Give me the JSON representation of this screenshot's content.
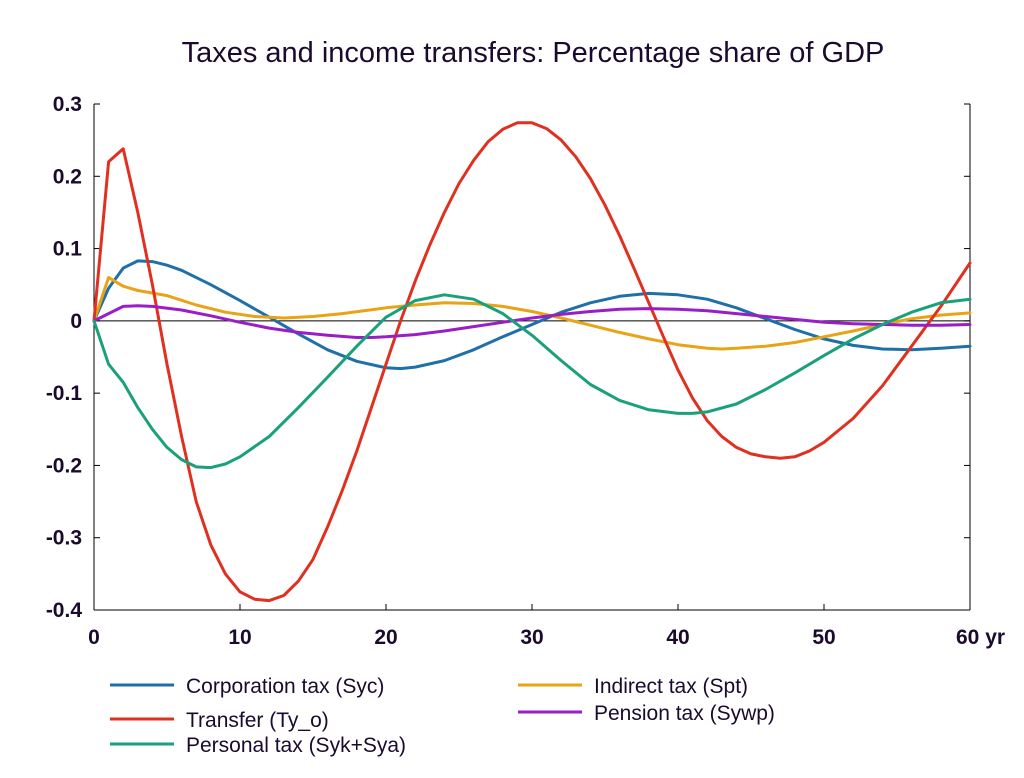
{
  "chart_data": {
    "type": "line",
    "title": "Taxes and income transfers: Percentage share of GDP",
    "xlabel": "",
    "ylabel": "",
    "xlim": [
      0,
      60
    ],
    "ylim": [
      -0.4,
      0.3
    ],
    "x_ticks": [
      0,
      10,
      20,
      30,
      40,
      50,
      60
    ],
    "x_tick_labels": [
      "0",
      "10",
      "20",
      "30",
      "40",
      "50",
      "60 yr"
    ],
    "y_ticks": [
      0.3,
      0.2,
      0.1,
      0,
      -0.1,
      -0.2,
      -0.3,
      -0.4
    ],
    "y_tick_labels": [
      "0.3",
      "0.2",
      "0.1",
      "0",
      "-0.1",
      "-0.2",
      "-0.3",
      "-0.4"
    ],
    "grid": false,
    "legend_position": "bottom",
    "series": [
      {
        "name": "Corporation tax (Syc)",
        "color": "#1f6fa8",
        "x": [
          0,
          1,
          2,
          3,
          4,
          5,
          6,
          8,
          10,
          12,
          14,
          16,
          18,
          20,
          21,
          22,
          24,
          26,
          28,
          30,
          32,
          34,
          36,
          38,
          40,
          42,
          44,
          46,
          48,
          50,
          52,
          54,
          56,
          58,
          60
        ],
        "y": [
          0,
          0.045,
          0.073,
          0.083,
          0.082,
          0.077,
          0.07,
          0.05,
          0.028,
          0.005,
          -0.018,
          -0.04,
          -0.056,
          -0.065,
          -0.066,
          -0.064,
          -0.055,
          -0.04,
          -0.022,
          -0.005,
          0.012,
          0.025,
          0.034,
          0.038,
          0.036,
          0.03,
          0.018,
          0.003,
          -0.012,
          -0.025,
          -0.034,
          -0.039,
          -0.04,
          -0.038,
          -0.035
        ]
      },
      {
        "name": "Indirect tax (Spt)",
        "color": "#e8a317",
        "x": [
          0,
          1,
          2,
          3,
          5,
          7,
          9,
          11,
          13,
          15,
          17,
          20,
          22,
          24,
          26,
          28,
          30,
          32,
          34,
          36,
          38,
          40,
          42,
          43,
          44,
          46,
          48,
          50,
          52,
          54,
          56,
          58,
          60
        ],
        "y": [
          0,
          0.06,
          0.048,
          0.042,
          0.035,
          0.022,
          0.012,
          0.006,
          0.004,
          0.006,
          0.01,
          0.018,
          0.022,
          0.025,
          0.024,
          0.02,
          0.013,
          0.004,
          -0.006,
          -0.016,
          -0.025,
          -0.033,
          -0.038,
          -0.039,
          -0.038,
          -0.035,
          -0.03,
          -0.022,
          -0.014,
          -0.005,
          0.003,
          0.008,
          0.011
        ]
      },
      {
        "name": "Transfer (Ty_o)",
        "color": "#e03020",
        "x": [
          0,
          1,
          2,
          3,
          4,
          5,
          6,
          7,
          8,
          9,
          10,
          11,
          12,
          13,
          14,
          15,
          16,
          17,
          18,
          19,
          20,
          21,
          22,
          23,
          24,
          25,
          26,
          27,
          28,
          29,
          30,
          31,
          32,
          33,
          34,
          35,
          36,
          37,
          38,
          39,
          40,
          41,
          42,
          43,
          44,
          45,
          46,
          47,
          48,
          49,
          50,
          52,
          54,
          56,
          58,
          60
        ],
        "y": [
          0,
          0.22,
          0.238,
          0.15,
          0.05,
          -0.06,
          -0.16,
          -0.25,
          -0.31,
          -0.35,
          -0.375,
          -0.385,
          -0.387,
          -0.38,
          -0.36,
          -0.33,
          -0.285,
          -0.235,
          -0.18,
          -0.12,
          -0.06,
          0.0,
          0.055,
          0.105,
          0.15,
          0.19,
          0.222,
          0.248,
          0.265,
          0.274,
          0.274,
          0.266,
          0.25,
          0.227,
          0.197,
          0.16,
          0.118,
          0.072,
          0.025,
          -0.022,
          -0.068,
          -0.107,
          -0.138,
          -0.16,
          -0.175,
          -0.184,
          -0.188,
          -0.19,
          -0.188,
          -0.18,
          -0.168,
          -0.135,
          -0.09,
          -0.035,
          0.02,
          0.08
        ]
      },
      {
        "name": "Pension tax (Sywp)",
        "color": "#9a1ec8",
        "x": [
          0,
          1,
          2,
          3,
          4,
          6,
          8,
          10,
          12,
          14,
          16,
          18,
          19,
          20,
          22,
          24,
          26,
          28,
          30,
          32,
          34,
          36,
          38,
          40,
          42,
          44,
          46,
          48,
          50,
          52,
          54,
          56,
          58,
          60
        ],
        "y": [
          0,
          0.01,
          0.02,
          0.021,
          0.02,
          0.015,
          0.007,
          -0.002,
          -0.01,
          -0.016,
          -0.02,
          -0.023,
          -0.023,
          -0.022,
          -0.019,
          -0.014,
          -0.008,
          -0.002,
          0.004,
          0.009,
          0.013,
          0.016,
          0.017,
          0.016,
          0.014,
          0.01,
          0.006,
          0.002,
          -0.002,
          -0.004,
          -0.005,
          -0.006,
          -0.006,
          -0.005
        ]
      },
      {
        "name": "Personal tax (Syk+Sya)",
        "color": "#1aa07a",
        "x": [
          0,
          1,
          2,
          3,
          4,
          5,
          6,
          7,
          8,
          9,
          10,
          12,
          14,
          16,
          18,
          20,
          22,
          24,
          26,
          28,
          30,
          32,
          34,
          36,
          38,
          40,
          41,
          42,
          44,
          46,
          48,
          50,
          52,
          54,
          56,
          58,
          60
        ],
        "y": [
          0,
          -0.06,
          -0.085,
          -0.12,
          -0.15,
          -0.175,
          -0.192,
          -0.202,
          -0.203,
          -0.198,
          -0.188,
          -0.16,
          -0.12,
          -0.078,
          -0.035,
          0.005,
          0.028,
          0.036,
          0.03,
          0.01,
          -0.02,
          -0.055,
          -0.088,
          -0.11,
          -0.123,
          -0.128,
          -0.128,
          -0.126,
          -0.115,
          -0.095,
          -0.072,
          -0.048,
          -0.025,
          -0.005,
          0.012,
          0.025,
          0.03
        ]
      }
    ]
  }
}
